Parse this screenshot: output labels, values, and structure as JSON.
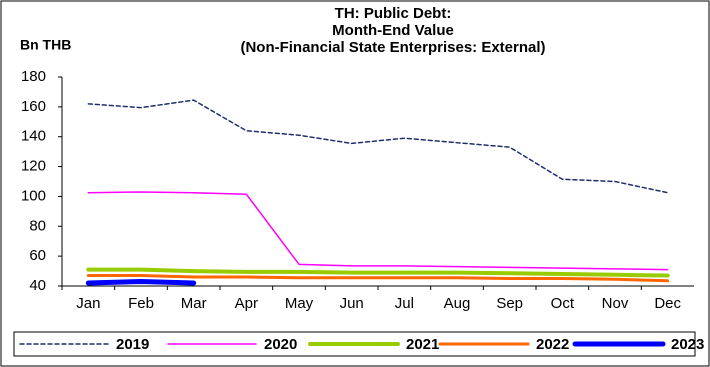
{
  "chart_data": {
    "type": "line",
    "title": [
      "TH: Public Debt:",
      "Month-End Value",
      "(Non-Financial State Enterprises: External)"
    ],
    "y_label": "Bn THB",
    "categories": [
      "Jan",
      "Feb",
      "Mar",
      "Apr",
      "May",
      "Jun",
      "Jul",
      "Aug",
      "Sep",
      "Oct",
      "Nov",
      "Dec"
    ],
    "ylim": [
      40,
      180
    ],
    "yticks": [
      40,
      60,
      80,
      100,
      120,
      140,
      160,
      180
    ],
    "grid": false,
    "legend": "bottom",
    "series": [
      {
        "name": "2019",
        "color": "#1f2f6e",
        "line_style": "dashed",
        "values": [
          162,
          159.5,
          164.5,
          144,
          141,
          135.5,
          139,
          136,
          133,
          111.5,
          110,
          102.5
        ]
      },
      {
        "name": "2020",
        "color": "#ff00ff",
        "line_style": "solid",
        "values": [
          102.5,
          103,
          102.5,
          101.5,
          54.5,
          53.5,
          53.5,
          53,
          52.5,
          52,
          51.5,
          51
        ]
      },
      {
        "name": "2021",
        "color": "#99cc00",
        "line_style": "solid",
        "values": [
          51,
          51,
          50,
          49.5,
          49.5,
          49,
          49,
          49,
          48.5,
          48,
          47.5,
          47
        ]
      },
      {
        "name": "2022",
        "color": "#ff6600",
        "line_style": "solid",
        "values": [
          47,
          47,
          46,
          46,
          45.5,
          45.5,
          45.5,
          45.5,
          45,
          45,
          44.5,
          43.5
        ]
      },
      {
        "name": "2023",
        "color": "#0000ff",
        "line_style": "solid",
        "values": [
          42,
          43,
          42,
          null,
          null,
          null,
          null,
          null,
          null,
          null,
          null,
          null
        ]
      }
    ]
  }
}
